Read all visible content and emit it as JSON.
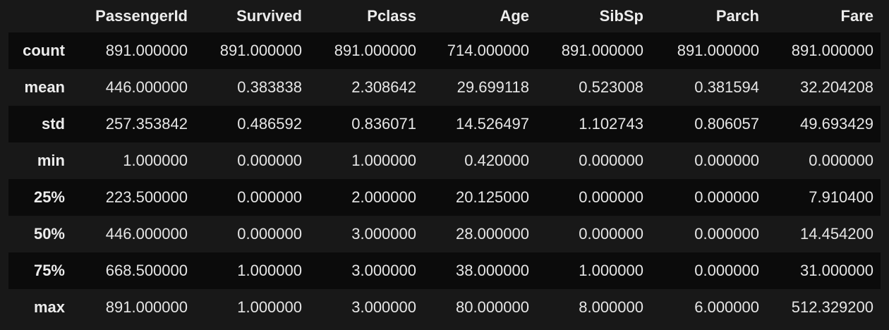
{
  "table": {
    "index_header": "",
    "columns": [
      "PassengerId",
      "Survived",
      "Pclass",
      "Age",
      "SibSp",
      "Parch",
      "Fare"
    ],
    "rows": [
      {
        "label": "count",
        "values": [
          "891.000000",
          "891.000000",
          "891.000000",
          "714.000000",
          "891.000000",
          "891.000000",
          "891.000000"
        ]
      },
      {
        "label": "mean",
        "values": [
          "446.000000",
          "0.383838",
          "2.308642",
          "29.699118",
          "0.523008",
          "0.381594",
          "32.204208"
        ]
      },
      {
        "label": "std",
        "values": [
          "257.353842",
          "0.486592",
          "0.836071",
          "14.526497",
          "1.102743",
          "0.806057",
          "49.693429"
        ]
      },
      {
        "label": "min",
        "values": [
          "1.000000",
          "0.000000",
          "1.000000",
          "0.420000",
          "0.000000",
          "0.000000",
          "0.000000"
        ]
      },
      {
        "label": "25%",
        "values": [
          "223.500000",
          "0.000000",
          "2.000000",
          "20.125000",
          "0.000000",
          "0.000000",
          "7.910400"
        ]
      },
      {
        "label": "50%",
        "values": [
          "446.000000",
          "0.000000",
          "3.000000",
          "28.000000",
          "0.000000",
          "0.000000",
          "14.454200"
        ]
      },
      {
        "label": "75%",
        "values": [
          "668.500000",
          "1.000000",
          "3.000000",
          "38.000000",
          "1.000000",
          "0.000000",
          "31.000000"
        ]
      },
      {
        "label": "max",
        "values": [
          "891.000000",
          "1.000000",
          "3.000000",
          "80.000000",
          "8.000000",
          "6.000000",
          "512.329200"
        ]
      }
    ]
  },
  "colors": {
    "background": "#181818",
    "stripe_dark": "#0b0b0b",
    "text": "#ececec"
  }
}
